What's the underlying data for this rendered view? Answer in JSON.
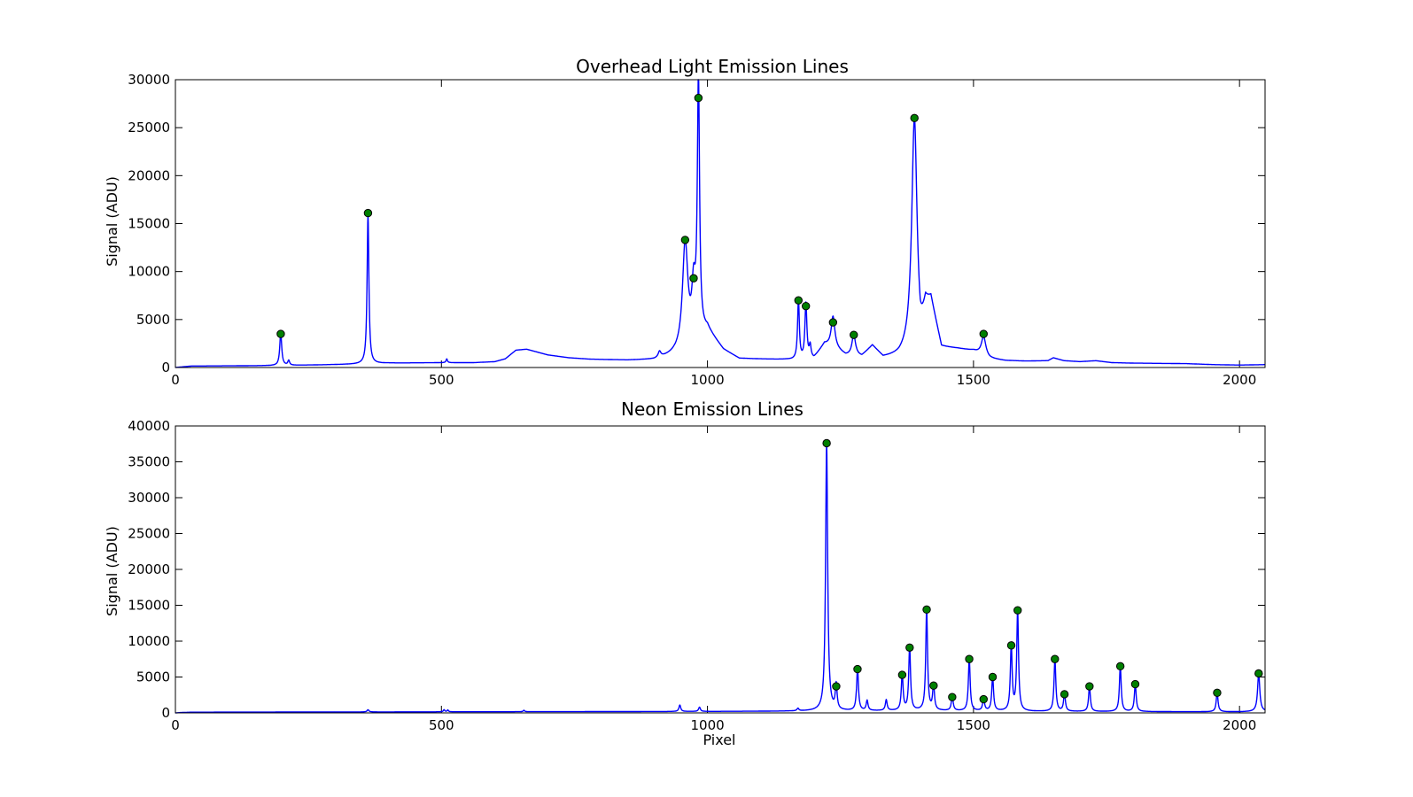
{
  "chart_data": [
    {
      "type": "line",
      "title": "Overhead Light Emission Lines",
      "xlabel": "",
      "ylabel": "Signal (ADU)",
      "xlim": [
        0,
        2048
      ],
      "ylim": [
        0,
        30000
      ],
      "xticks": [
        0,
        500,
        1000,
        1500,
        2000
      ],
      "yticks": [
        0,
        5000,
        10000,
        15000,
        20000,
        25000,
        30000
      ],
      "series": [
        {
          "name": "spectrum",
          "color": "#0000ff",
          "baseline": [
            [
              0,
              0
            ],
            [
              10,
              50
            ],
            [
              30,
              150
            ],
            [
              200,
              200
            ],
            [
              300,
              300
            ],
            [
              350,
              350
            ],
            [
              400,
              450
            ],
            [
              500,
              500
            ],
            [
              560,
              500
            ],
            [
              600,
              600
            ],
            [
              620,
              900
            ],
            [
              640,
              1800
            ],
            [
              660,
              1900
            ],
            [
              680,
              1600
            ],
            [
              700,
              1300
            ],
            [
              740,
              1000
            ],
            [
              780,
              850
            ],
            [
              850,
              750
            ],
            [
              900,
              800
            ],
            [
              930,
              1200
            ],
            [
              950,
              1500
            ],
            [
              1000,
              3800
            ],
            [
              1030,
              1800
            ],
            [
              1060,
              900
            ],
            [
              1100,
              850
            ],
            [
              1150,
              800
            ],
            [
              1175,
              700
            ],
            [
              1200,
              900
            ],
            [
              1220,
              2400
            ],
            [
              1240,
              2000
            ],
            [
              1260,
              1200
            ],
            [
              1290,
              1100
            ],
            [
              1310,
              2200
            ],
            [
              1330,
              1000
            ],
            [
              1360,
              1100
            ],
            [
              1380,
              1600
            ],
            [
              1400,
              1500
            ],
            [
              1410,
              6000
            ],
            [
              1420,
              6800
            ],
            [
              1440,
              2000
            ],
            [
              1470,
              1900
            ],
            [
              1500,
              1700
            ],
            [
              1530,
              900
            ],
            [
              1560,
              700
            ],
            [
              1600,
              650
            ],
            [
              1640,
              700
            ],
            [
              1650,
              1000
            ],
            [
              1670,
              700
            ],
            [
              1700,
              600
            ],
            [
              1730,
              700
            ],
            [
              1760,
              500
            ],
            [
              1800,
              450
            ],
            [
              1900,
              400
            ],
            [
              1950,
              300
            ],
            [
              2000,
              250
            ],
            [
              2048,
              300
            ]
          ],
          "lines": [
            {
              "center": 198,
              "height": 3400,
              "width": 2.2
            },
            {
              "center": 213,
              "height": 500,
              "width": 2
            },
            {
              "center": 362,
              "height": 15600,
              "width": 2
            },
            {
              "center": 510,
              "height": 400,
              "width": 1.5
            },
            {
              "center": 910,
              "height": 600,
              "width": 3
            },
            {
              "center": 958,
              "height": 11000,
              "width": 6
            },
            {
              "center": 974,
              "height": 5000,
              "width": 4
            },
            {
              "center": 983,
              "height": 26500,
              "width": 2.5
            },
            {
              "center": 1171,
              "height": 6300,
              "width": 2
            },
            {
              "center": 1185,
              "height": 5800,
              "width": 2.2
            },
            {
              "center": 1193,
              "height": 1300,
              "width": 2
            },
            {
              "center": 1236,
              "height": 3200,
              "width": 4
            },
            {
              "center": 1275,
              "height": 2200,
              "width": 4
            },
            {
              "center": 1389,
              "height": 24500,
              "width": 6
            },
            {
              "center": 1519,
              "height": 2000,
              "width": 5
            }
          ]
        }
      ],
      "peaks": [
        {
          "x": 198,
          "y": 3500
        },
        {
          "x": 362,
          "y": 16100
        },
        {
          "x": 958,
          "y": 13300
        },
        {
          "x": 974,
          "y": 9300
        },
        {
          "x": 983,
          "y": 28100
        },
        {
          "x": 1171,
          "y": 7000
        },
        {
          "x": 1185,
          "y": 6400
        },
        {
          "x": 1236,
          "y": 4700
        },
        {
          "x": 1275,
          "y": 3400
        },
        {
          "x": 1389,
          "y": 26000
        },
        {
          "x": 1519,
          "y": 3500
        }
      ]
    },
    {
      "type": "line",
      "title": "Neon Emission Lines",
      "xlabel": "Pixel",
      "ylabel": "Signal (ADU)",
      "xlim": [
        0,
        2048
      ],
      "ylim": [
        0,
        40000
      ],
      "xticks": [
        0,
        500,
        1000,
        1500,
        2000
      ],
      "yticks": [
        0,
        5000,
        10000,
        15000,
        20000,
        25000,
        30000,
        35000,
        40000
      ],
      "series": [
        {
          "name": "spectrum",
          "color": "#0000ff",
          "baseline": [
            [
              0,
              0
            ],
            [
              10,
              50
            ],
            [
              30,
              100
            ],
            [
              500,
              150
            ],
            [
              1000,
              200
            ],
            [
              1200,
              250
            ],
            [
              1400,
              300
            ],
            [
              1600,
              200
            ],
            [
              2000,
              150
            ],
            [
              2048,
              200
            ]
          ],
          "lines": [
            {
              "center": 362,
              "height": 300,
              "width": 2
            },
            {
              "center": 505,
              "height": 300,
              "width": 1.5
            },
            {
              "center": 512,
              "height": 250,
              "width": 1.5
            },
            {
              "center": 655,
              "height": 200,
              "width": 1.5
            },
            {
              "center": 948,
              "height": 900,
              "width": 2
            },
            {
              "center": 985,
              "height": 600,
              "width": 2
            },
            {
              "center": 1170,
              "height": 350,
              "width": 2
            },
            {
              "center": 1224,
              "height": 37400,
              "width": 2.3
            },
            {
              "center": 1242,
              "height": 3500,
              "width": 2
            },
            {
              "center": 1282,
              "height": 6000,
              "width": 2
            },
            {
              "center": 1300,
              "height": 1400,
              "width": 2
            },
            {
              "center": 1336,
              "height": 1500,
              "width": 2
            },
            {
              "center": 1366,
              "height": 5100,
              "width": 2
            },
            {
              "center": 1380,
              "height": 8900,
              "width": 2
            },
            {
              "center": 1412,
              "height": 14200,
              "width": 2
            },
            {
              "center": 1425,
              "height": 3600,
              "width": 2
            },
            {
              "center": 1460,
              "height": 2100,
              "width": 2
            },
            {
              "center": 1492,
              "height": 7300,
              "width": 2
            },
            {
              "center": 1519,
              "height": 1800,
              "width": 2
            },
            {
              "center": 1536,
              "height": 4800,
              "width": 2
            },
            {
              "center": 1571,
              "height": 9200,
              "width": 2
            },
            {
              "center": 1583,
              "height": 14000,
              "width": 2
            },
            {
              "center": 1653,
              "height": 7300,
              "width": 2
            },
            {
              "center": 1671,
              "height": 2500,
              "width": 2
            },
            {
              "center": 1718,
              "height": 3500,
              "width": 2
            },
            {
              "center": 1776,
              "height": 6400,
              "width": 2
            },
            {
              "center": 1804,
              "height": 3900,
              "width": 2
            },
            {
              "center": 1958,
              "height": 2700,
              "width": 2
            },
            {
              "center": 2036,
              "height": 5300,
              "width": 2.5
            }
          ]
        }
      ],
      "peaks": [
        {
          "x": 1224,
          "y": 37600
        },
        {
          "x": 1242,
          "y": 3700
        },
        {
          "x": 1282,
          "y": 6100
        },
        {
          "x": 1366,
          "y": 5300
        },
        {
          "x": 1380,
          "y": 9100
        },
        {
          "x": 1412,
          "y": 14400
        },
        {
          "x": 1425,
          "y": 3800
        },
        {
          "x": 1460,
          "y": 2200
        },
        {
          "x": 1492,
          "y": 7500
        },
        {
          "x": 1519,
          "y": 1900
        },
        {
          "x": 1536,
          "y": 5000
        },
        {
          "x": 1571,
          "y": 9400
        },
        {
          "x": 1583,
          "y": 14300
        },
        {
          "x": 1653,
          "y": 7500
        },
        {
          "x": 1671,
          "y": 2600
        },
        {
          "x": 1718,
          "y": 3700
        },
        {
          "x": 1776,
          "y": 6500
        },
        {
          "x": 1804,
          "y": 4000
        },
        {
          "x": 1958,
          "y": 2800
        },
        {
          "x": 2036,
          "y": 5500
        }
      ]
    }
  ]
}
